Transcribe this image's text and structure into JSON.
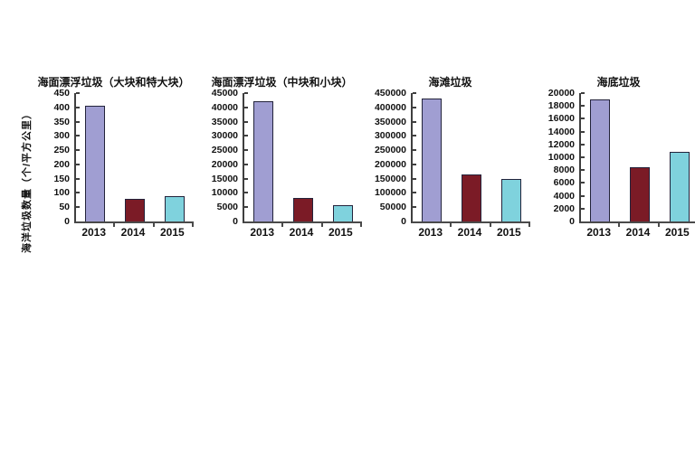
{
  "figure": {
    "background": "#ffffff",
    "shared_y_axis_label": "海洋垃圾数量（个/平方公里）"
  },
  "palette": {
    "bar_colors": [
      "#a09ed2",
      "#7b1b26",
      "#7fd2dd"
    ],
    "bar_border": "#23233b",
    "axis_color": "#3f3f3f",
    "text_color": "#111111"
  },
  "chart_data": [
    {
      "type": "bar",
      "title": "海面漂浮垃圾（大块和特大块）",
      "ylabel": "海洋垃圾数量（个/平方公里）",
      "categories": [
        "2013",
        "2014",
        "2015"
      ],
      "values": [
        405,
        80,
        88
      ],
      "ylim": [
        0,
        450
      ],
      "ystep": 50,
      "grid": false,
      "legend": "none"
    },
    {
      "type": "bar",
      "title": "海面漂浮垃圾（中块和小块）",
      "categories": [
        "2013",
        "2014",
        "2015"
      ],
      "values": [
        42000,
        8200,
        5800
      ],
      "ylim": [
        0,
        45000
      ],
      "ystep": 5000,
      "grid": false,
      "legend": "none"
    },
    {
      "type": "bar",
      "title": "海滩垃圾",
      "categories": [
        "2013",
        "2014",
        "2015"
      ],
      "values": [
        430000,
        165000,
        150000
      ],
      "ylim": [
        0,
        450000
      ],
      "ystep": 50000,
      "grid": false,
      "legend": "none"
    },
    {
      "type": "bar",
      "title": "海底垃圾",
      "categories": [
        "2013",
        "2014",
        "2015"
      ],
      "values": [
        19000,
        8400,
        10900
      ],
      "ylim": [
        0,
        20000
      ],
      "ystep": 2000,
      "grid": false,
      "legend": "none"
    }
  ]
}
